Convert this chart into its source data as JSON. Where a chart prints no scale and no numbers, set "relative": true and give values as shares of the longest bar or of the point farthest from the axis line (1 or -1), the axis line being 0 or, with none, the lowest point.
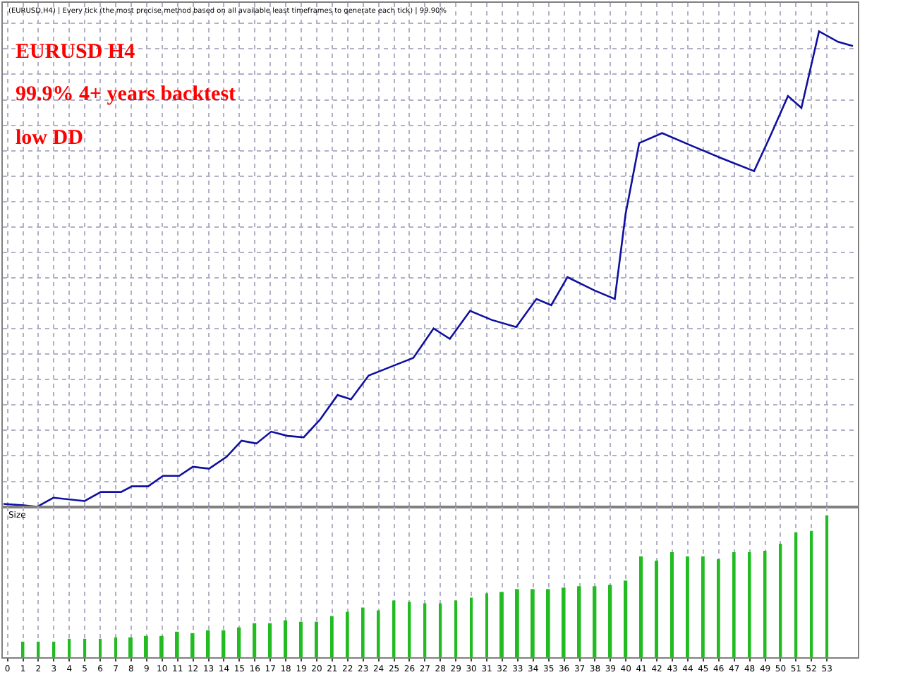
{
  "chart_data": [
    {
      "type": "line",
      "relative": true,
      "tick_labels": false,
      "grid": true,
      "marker": "none",
      "line_style": "solid",
      "annotations": [
        "(EURUSD,H4) | Every tick (the most precise method based on all available least timeframes to generate each tick) | 99.90%",
        "EURUSD H4",
        "99.9% 4+ years backtest",
        "low DD"
      ],
      "xlim": [
        -0.3,
        55
      ],
      "xticks": [
        0,
        1,
        2,
        3,
        4,
        5,
        6,
        7,
        8,
        9,
        10,
        11,
        12,
        13,
        14,
        15,
        16,
        17,
        18,
        19,
        20,
        21,
        22,
        23,
        24,
        25,
        26,
        27,
        28,
        29,
        30,
        31,
        32,
        33,
        34,
        35,
        36,
        37,
        38,
        39,
        40,
        41,
        42,
        43,
        44,
        45,
        46,
        47,
        48,
        49,
        50,
        51,
        52,
        53
      ],
      "series": [
        {
          "color": "#1010a0",
          "x": [
            -0.26,
            1.05,
            1.92,
            2.97,
            4.99,
            6.04,
            7.35,
            8.05,
            9.1,
            10.06,
            11.11,
            11.99,
            13.04,
            14.17,
            15.14,
            16.1,
            17.06,
            18.11,
            19.16,
            20.21,
            21.35,
            22.22,
            23.36,
            24.76,
            26.25,
            27.56,
            28.61,
            29.92,
            31.32,
            32.9,
            34.21,
            35.17,
            36.22,
            37.97,
            39.28,
            39.98,
            40.86,
            42.34,
            44.27,
            46.11,
            48.29,
            49.34,
            50.48,
            51.35,
            52.49,
            53.72,
            54.68
          ],
          "values": [
            0.006,
            0.003,
            0,
            0.019,
            0.012,
            0.031,
            0.031,
            0.043,
            0.043,
            0.065,
            0.065,
            0.084,
            0.08,
            0.105,
            0.139,
            0.133,
            0.158,
            0.149,
            0.146,
            0.183,
            0.235,
            0.226,
            0.276,
            0.294,
            0.313,
            0.375,
            0.353,
            0.412,
            0.393,
            0.378,
            0.437,
            0.424,
            0.483,
            0.455,
            0.437,
            0.616,
            0.765,
            0.786,
            0.759,
            0.734,
            0.706,
            0.78,
            0.864,
            0.839,
            1.0,
            0.978,
            0.969
          ]
        }
      ]
    },
    {
      "type": "bar",
      "relative": true,
      "tick_labels": "x",
      "grid": "x",
      "ylabel": "Size",
      "xlim": [
        -0.3,
        55
      ],
      "xticks": [
        0,
        1,
        2,
        3,
        4,
        5,
        6,
        7,
        8,
        9,
        10,
        11,
        12,
        13,
        14,
        15,
        16,
        17,
        18,
        19,
        20,
        21,
        22,
        23,
        24,
        25,
        26,
        27,
        28,
        29,
        30,
        31,
        32,
        33,
        34,
        35,
        36,
        37,
        38,
        39,
        40,
        41,
        42,
        43,
        44,
        45,
        46,
        47,
        48,
        49,
        50,
        51,
        52,
        53
      ],
      "series": [
        {
          "color": "#22bb22",
          "x": [
            1,
            2,
            3,
            4,
            5,
            6,
            7,
            8,
            9,
            10,
            11,
            12,
            13,
            14,
            15,
            16,
            17,
            18,
            19,
            20,
            21,
            22,
            23,
            24,
            25,
            26,
            27,
            28,
            29,
            30,
            31,
            32,
            33,
            34,
            35,
            36,
            37,
            38,
            39,
            40,
            41,
            42,
            43,
            44,
            45,
            46,
            47,
            48,
            49,
            50,
            51,
            52,
            53
          ],
          "values": [
            0.11,
            0.11,
            0.11,
            0.13,
            0.13,
            0.13,
            0.14,
            0.14,
            0.15,
            0.15,
            0.18,
            0.17,
            0.19,
            0.19,
            0.21,
            0.24,
            0.24,
            0.26,
            0.25,
            0.25,
            0.29,
            0.32,
            0.35,
            0.33,
            0.4,
            0.39,
            0.38,
            0.38,
            0.4,
            0.42,
            0.45,
            0.46,
            0.48,
            0.48,
            0.48,
            0.49,
            0.5,
            0.5,
            0.51,
            0.54,
            0.71,
            0.68,
            0.74,
            0.71,
            0.71,
            0.69,
            0.74,
            0.74,
            0.75,
            0.8,
            0.88,
            0.89,
            1.0
          ]
        }
      ]
    }
  ]
}
